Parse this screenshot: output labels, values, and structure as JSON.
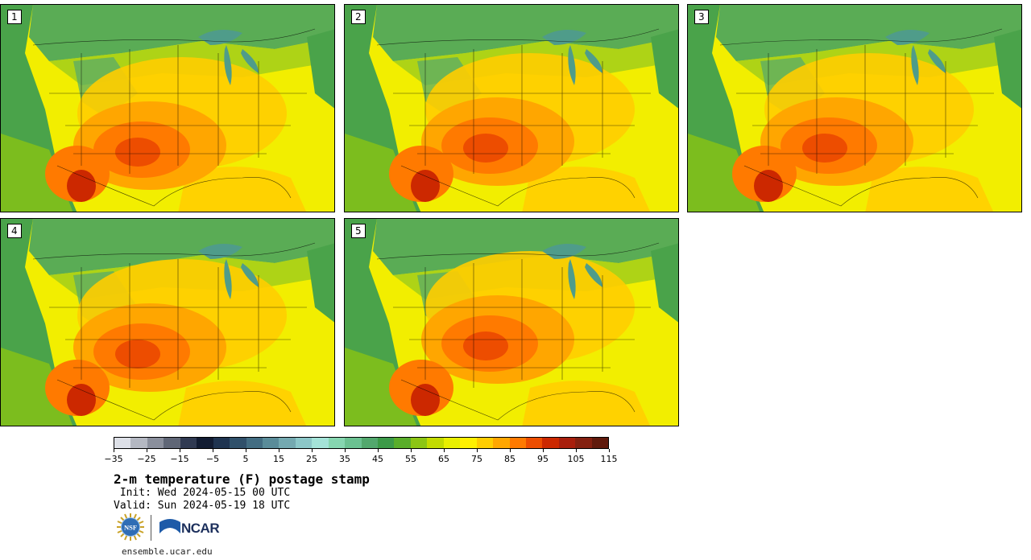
{
  "panels": [
    {
      "label": "1"
    },
    {
      "label": "2"
    },
    {
      "label": "3"
    },
    {
      "label": "4"
    },
    {
      "label": "5"
    }
  ],
  "colorbar": {
    "colors": [
      "#dde0e7",
      "#b4b8c2",
      "#8a8f9c",
      "#5f6676",
      "#303a52",
      "#121c32",
      "#1f3450",
      "#30506a",
      "#436d82",
      "#5a8c99",
      "#74a9b0",
      "#8cc7c8",
      "#a4e3d8",
      "#86d6b0",
      "#6bc191",
      "#52a86d",
      "#3c9a48",
      "#59ae2a",
      "#8cc614",
      "#c2db00",
      "#e8ef00",
      "#fff000",
      "#ffcd00",
      "#ffa600",
      "#ff7a00",
      "#ed4d00",
      "#cc2800",
      "#a81e0c",
      "#842010",
      "#601a0c"
    ],
    "tick_labels": [
      "−35",
      "−25",
      "−15",
      "−5",
      "5",
      "15",
      "25",
      "35",
      "45",
      "55",
      "65",
      "75",
      "85",
      "95",
      "105",
      "115"
    ]
  },
  "title": "2-m temperature (F) postage stamp",
  "init": " Init: Wed 2024-05-15 00 UTC",
  "valid": "Valid: Sun 2024-05-19 18 UTC",
  "logo": {
    "nsf": "NSF",
    "ncar": "NCAR"
  },
  "url": "ensemble.ucar.edu"
}
